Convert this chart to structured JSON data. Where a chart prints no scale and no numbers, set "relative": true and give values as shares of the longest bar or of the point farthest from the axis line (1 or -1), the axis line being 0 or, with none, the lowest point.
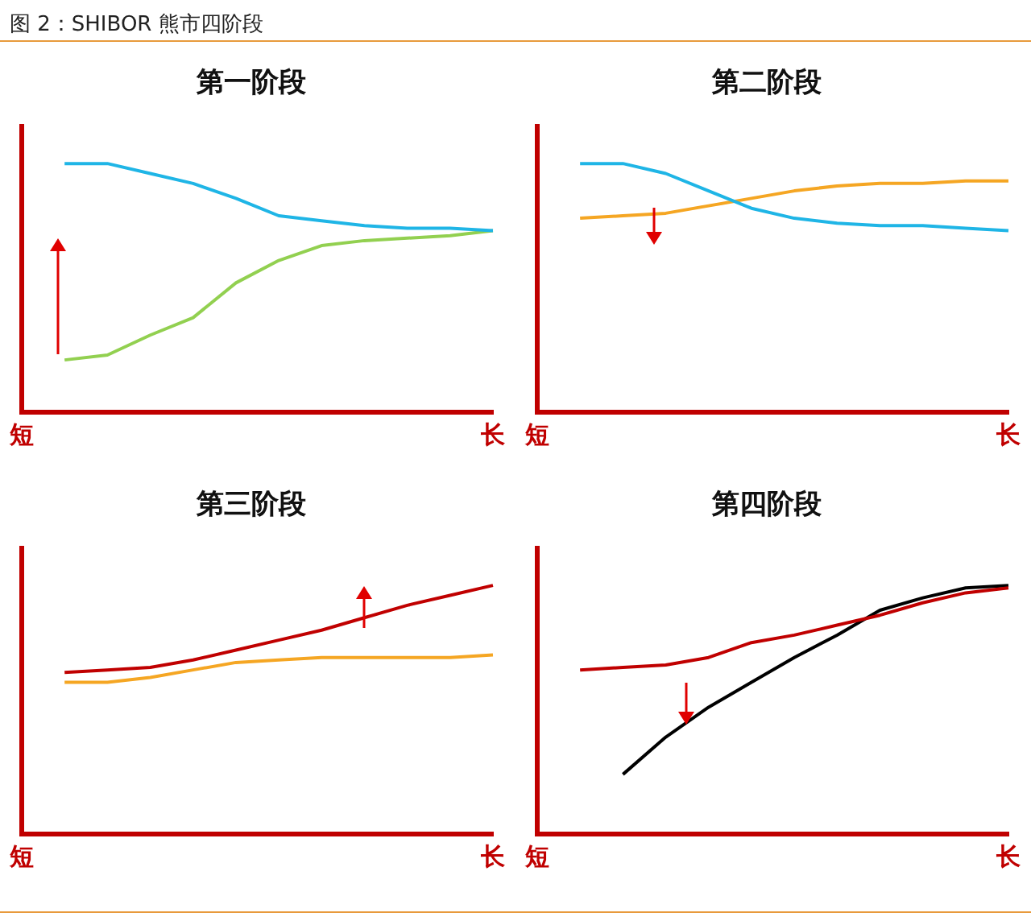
{
  "chart_data": [
    {
      "type": "line",
      "title": "第一阶段",
      "annotations": [
        "图 2：SHIBOR 熊市四阶段"
      ],
      "relative": true,
      "categories": [
        "短",
        null,
        null,
        null,
        null,
        null,
        null,
        null,
        null,
        null,
        null,
        "长"
      ],
      "series": [
        {
          "color": "#1fb5e6",
          "values": [
            null,
            1.0,
            1.0,
            0.96,
            0.92,
            0.86,
            0.79,
            0.77,
            0.75,
            0.74,
            0.74,
            0.73
          ]
        },
        {
          "color": "#92d050",
          "values": [
            null,
            0.21,
            0.23,
            0.31,
            0.38,
            0.52,
            0.61,
            0.67,
            0.69,
            0.7,
            0.71,
            0.73
          ]
        }
      ]
    },
    {
      "type": "line",
      "title": "第二阶段",
      "relative": true,
      "categories": [
        "短",
        null,
        null,
        null,
        null,
        null,
        null,
        null,
        null,
        null,
        null,
        "长"
      ],
      "series": [
        {
          "color": "#1fb5e6",
          "values": [
            null,
            1.0,
            1.0,
            0.96,
            0.89,
            0.82,
            0.78,
            0.76,
            0.75,
            0.75,
            0.74,
            0.73
          ]
        },
        {
          "color": "#f5a623",
          "values": [
            null,
            0.78,
            0.79,
            0.8,
            0.83,
            0.86,
            0.89,
            0.91,
            0.92,
            0.92,
            0.93,
            0.93
          ]
        }
      ]
    },
    {
      "type": "line",
      "title": "第三阶段",
      "relative": true,
      "categories": [
        "短",
        null,
        null,
        null,
        null,
        null,
        null,
        null,
        null,
        null,
        null,
        "长"
      ],
      "series": [
        {
          "color": "#c00000",
          "values": [
            null,
            0.65,
            0.66,
            0.67,
            0.7,
            0.74,
            0.78,
            0.82,
            0.87,
            0.92,
            0.96,
            1.0
          ]
        },
        {
          "color": "#f5a623",
          "values": [
            null,
            0.61,
            0.61,
            0.63,
            0.66,
            0.69,
            0.7,
            0.71,
            0.71,
            0.71,
            0.71,
            0.72
          ]
        }
      ]
    },
    {
      "type": "line",
      "title": "第四阶段",
      "relative": true,
      "categories": [
        "短",
        null,
        null,
        null,
        null,
        null,
        null,
        null,
        null,
        null,
        null,
        "长"
      ],
      "series": [
        {
          "color": "#c00000",
          "values": [
            null,
            0.66,
            0.67,
            0.68,
            0.71,
            0.77,
            0.8,
            0.84,
            0.88,
            0.93,
            0.97,
            0.99
          ]
        },
        {
          "color": "#000000",
          "values": [
            null,
            null,
            0.24,
            0.39,
            0.51,
            0.61,
            0.71,
            0.8,
            0.9,
            0.95,
            0.99,
            1.0
          ]
        }
      ]
    }
  ]
}
